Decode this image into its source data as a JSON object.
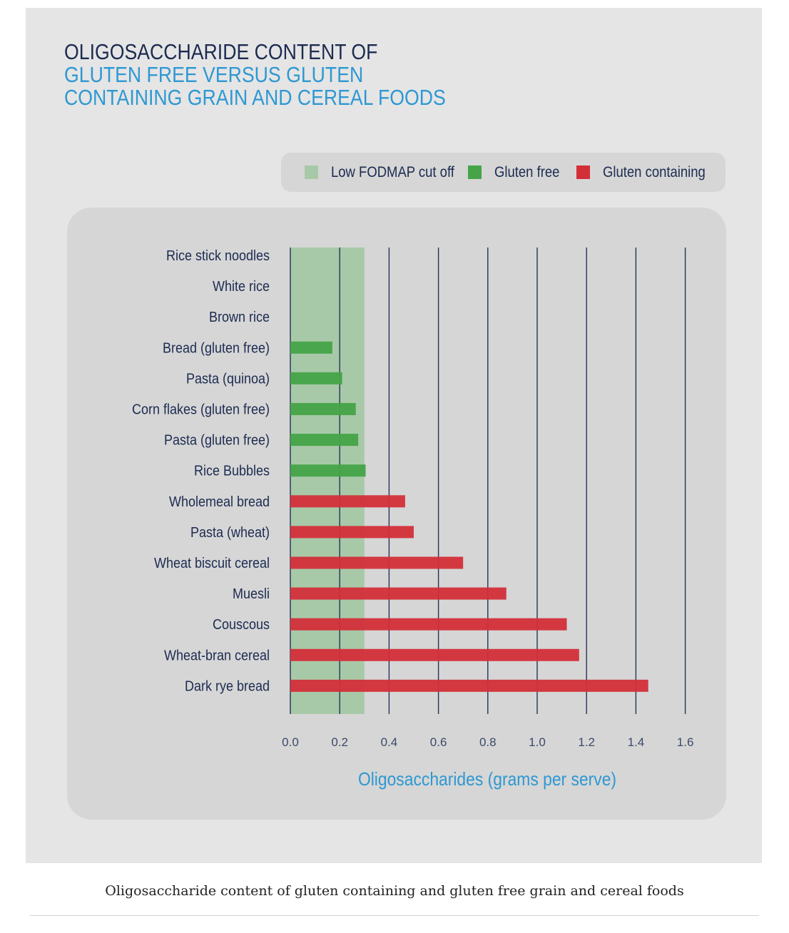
{
  "chart_data": {
    "type": "bar",
    "orientation": "horizontal",
    "title_lines": [
      "OLIGOSACCHARIDE CONTENT OF",
      "GLUTEN FREE VERSUS GLUTEN",
      "CONTAINING GRAIN AND CEREAL FOODS"
    ],
    "xlabel": "Oligosaccharides (grams per serve)",
    "xlim": [
      0,
      1.6
    ],
    "xticks": [
      "0.0",
      "0.2",
      "0.4",
      "0.6",
      "0.8",
      "1.0",
      "1.2",
      "1.4",
      "1.6"
    ],
    "grid": true,
    "legend": [
      {
        "label": "Low FODMAP cut off",
        "color": "#a8c9a8"
      },
      {
        "label": "Gluten free",
        "color": "#45a447"
      },
      {
        "label": "Gluten containing",
        "color": "#d32f39"
      }
    ],
    "legend_position": "top",
    "cutoff_band": [
      0,
      0.3
    ],
    "categories": [
      "Rice stick noodles",
      "White rice",
      "Brown rice",
      "Bread (gluten free)",
      "Pasta (quinoa)",
      "Corn flakes (gluten free)",
      "Pasta (gluten free)",
      "Rice Bubbles",
      "Wholemeal bread",
      "Pasta (wheat)",
      "Wheat biscuit cereal",
      "Muesli",
      "Couscous",
      "Wheat-bran cereal",
      "Dark rye bread"
    ],
    "values": [
      0,
      0,
      0,
      0.17,
      0.21,
      0.265,
      0.275,
      0.305,
      0.465,
      0.5,
      0.7,
      0.875,
      1.12,
      1.17,
      1.45
    ],
    "groups": [
      "gf",
      "gf",
      "gf",
      "gf",
      "gf",
      "gf",
      "gf",
      "gf",
      "gc",
      "gc",
      "gc",
      "gc",
      "gc",
      "gc",
      "gc"
    ],
    "colors": {
      "gf": "#45a447",
      "gc": "#d32f39",
      "band": "#a8c9a8",
      "grid": "#253358",
      "category_text": "#1c2b50",
      "tick_text": "#3a4a6a",
      "xlabel_text": "#2e98d2"
    }
  },
  "caption": "Oligosaccharide content of gluten containing and gluten free grain and cereal foods"
}
